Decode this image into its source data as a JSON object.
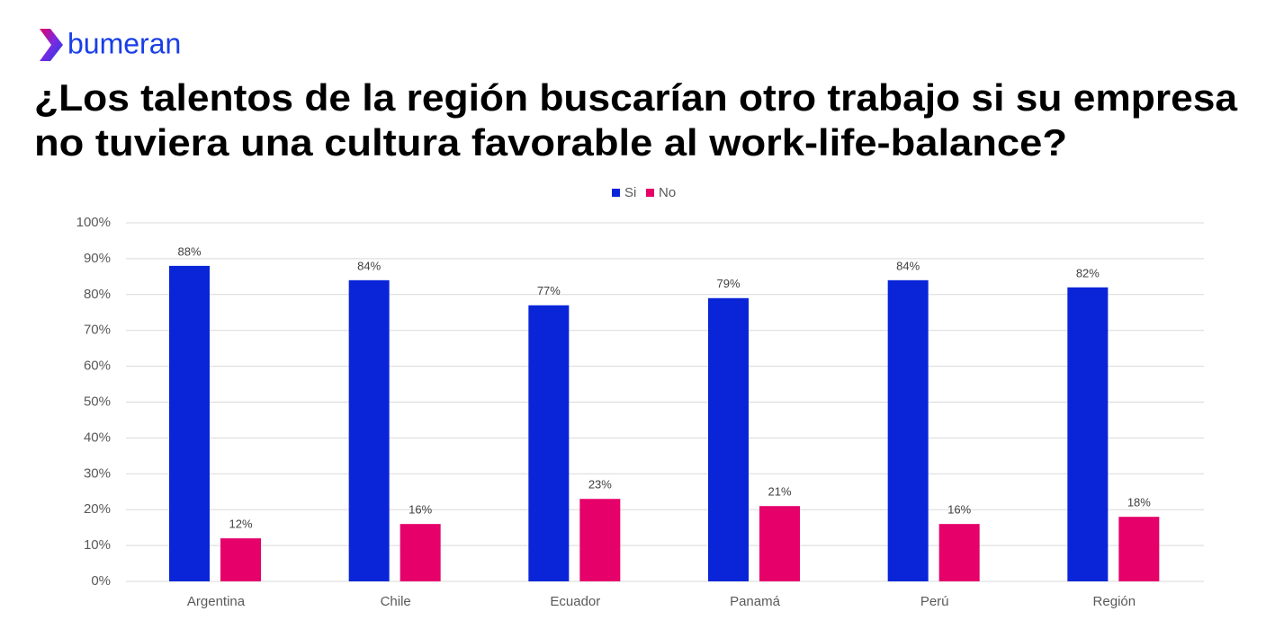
{
  "brand": "bumeran",
  "chart_data": {
    "type": "bar",
    "title": [
      "¿Los talentos de la región buscarían otro trabajo si su empresa",
      "no tuviera una cultura favorable al work-life-balance?"
    ],
    "categories": [
      "Argentina",
      "Chile",
      "Ecuador",
      "Panamá",
      "Perú",
      "Región"
    ],
    "series": [
      {
        "name": "Si",
        "color": "#0a25d8",
        "values": [
          88,
          84,
          77,
          79,
          84,
          82
        ],
        "value_labels": [
          "88%",
          "84%",
          "77%",
          "79%",
          "84%",
          "82%"
        ]
      },
      {
        "name": "No",
        "color": "#e5006a",
        "values": [
          12,
          16,
          23,
          21,
          16,
          18
        ],
        "value_labels": [
          "12%",
          "16%",
          "23%",
          "21%",
          "16%",
          "18%"
        ]
      }
    ],
    "ylim": [
      0,
      100
    ],
    "yticks": [
      {
        "value": 0,
        "label": "0%"
      },
      {
        "value": 10,
        "label": "10%"
      },
      {
        "value": 20,
        "label": "20%"
      },
      {
        "value": 30,
        "label": "30%"
      },
      {
        "value": 40,
        "label": "40%"
      },
      {
        "value": 50,
        "label": "50%"
      },
      {
        "value": 60,
        "label": "60%"
      },
      {
        "value": 70,
        "label": "70%"
      },
      {
        "value": 80,
        "label": "80%"
      },
      {
        "value": 90,
        "label": "90%"
      },
      {
        "value": 100,
        "label": "100%"
      }
    ],
    "grid": true,
    "legend": "top"
  }
}
